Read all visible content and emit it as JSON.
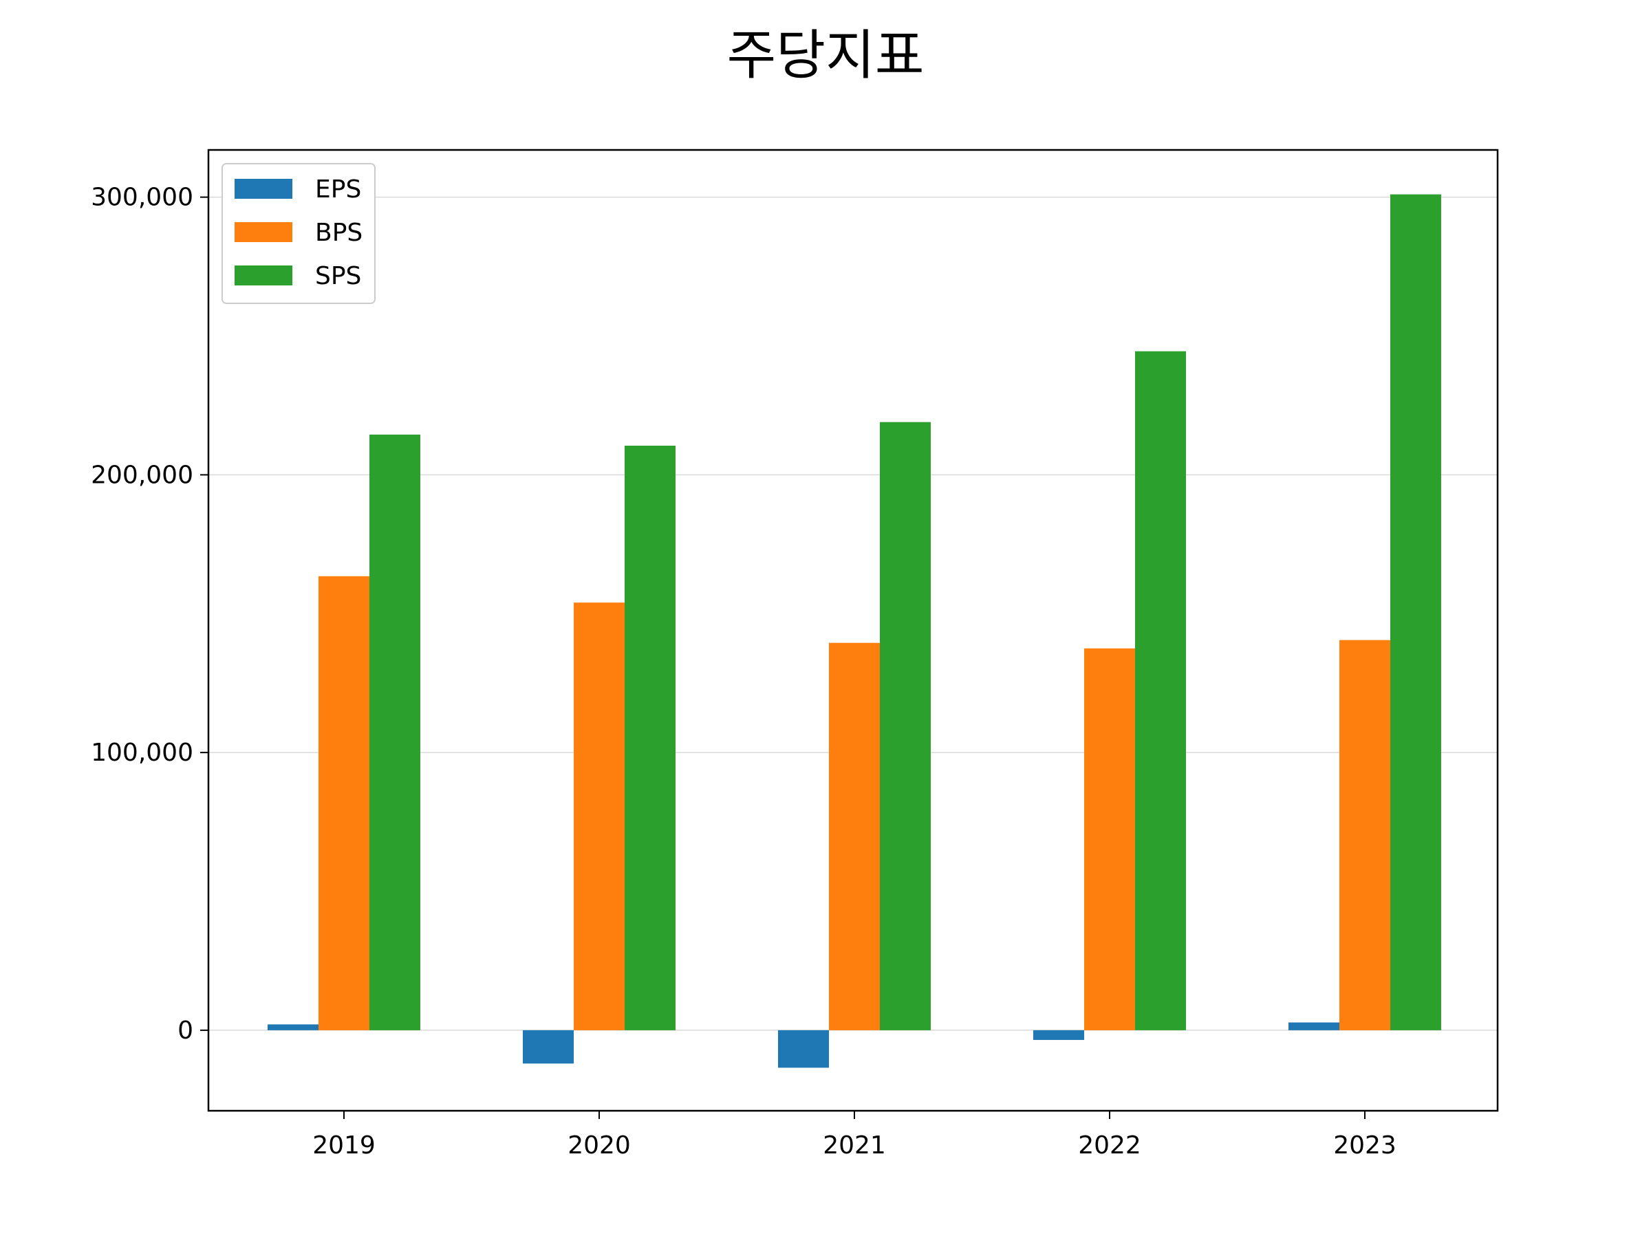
{
  "chart_data": {
    "type": "bar",
    "title": "주당지표",
    "xlabel": "",
    "ylabel": "",
    "categories": [
      "2019",
      "2020",
      "2021",
      "2022",
      "2023"
    ],
    "series": [
      {
        "name": "EPS",
        "color": "#1f77b4",
        "values": [
          2100,
          -12000,
          -13500,
          -3500,
          2800
        ]
      },
      {
        "name": "BPS",
        "color": "#ff7f0e",
        "values": [
          163500,
          154000,
          139500,
          137500,
          140500
        ]
      },
      {
        "name": "SPS",
        "color": "#2ca02c",
        "values": [
          214500,
          210500,
          219000,
          244500,
          301000
        ]
      }
    ],
    "ylim": [
      -29000,
      317000
    ],
    "yticks": [
      0,
      100000,
      200000,
      300000
    ],
    "ytick_labels": [
      "0",
      "100,000",
      "200,000",
      "300,000"
    ],
    "grid": "y",
    "legend": "top-left"
  }
}
